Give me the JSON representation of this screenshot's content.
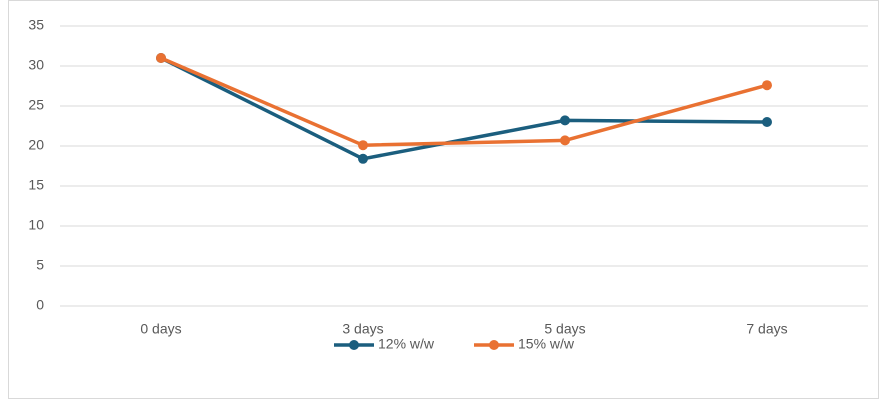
{
  "chart_data": {
    "type": "line",
    "categories": [
      "0 days",
      "3 days",
      "5 days",
      "7 days"
    ],
    "series": [
      {
        "name": "12% w/w",
        "color": "#1b5e7e",
        "values": [
          31,
          18.4,
          23.2,
          23
        ]
      },
      {
        "name": "15% w/w",
        "color": "#e97132",
        "values": [
          31,
          20.1,
          20.7,
          27.6
        ]
      }
    ],
    "ylim": [
      0,
      35
    ],
    "yticks": [
      0,
      5,
      10,
      15,
      20,
      25,
      30,
      35
    ],
    "grid": true,
    "legend": "bottom"
  }
}
